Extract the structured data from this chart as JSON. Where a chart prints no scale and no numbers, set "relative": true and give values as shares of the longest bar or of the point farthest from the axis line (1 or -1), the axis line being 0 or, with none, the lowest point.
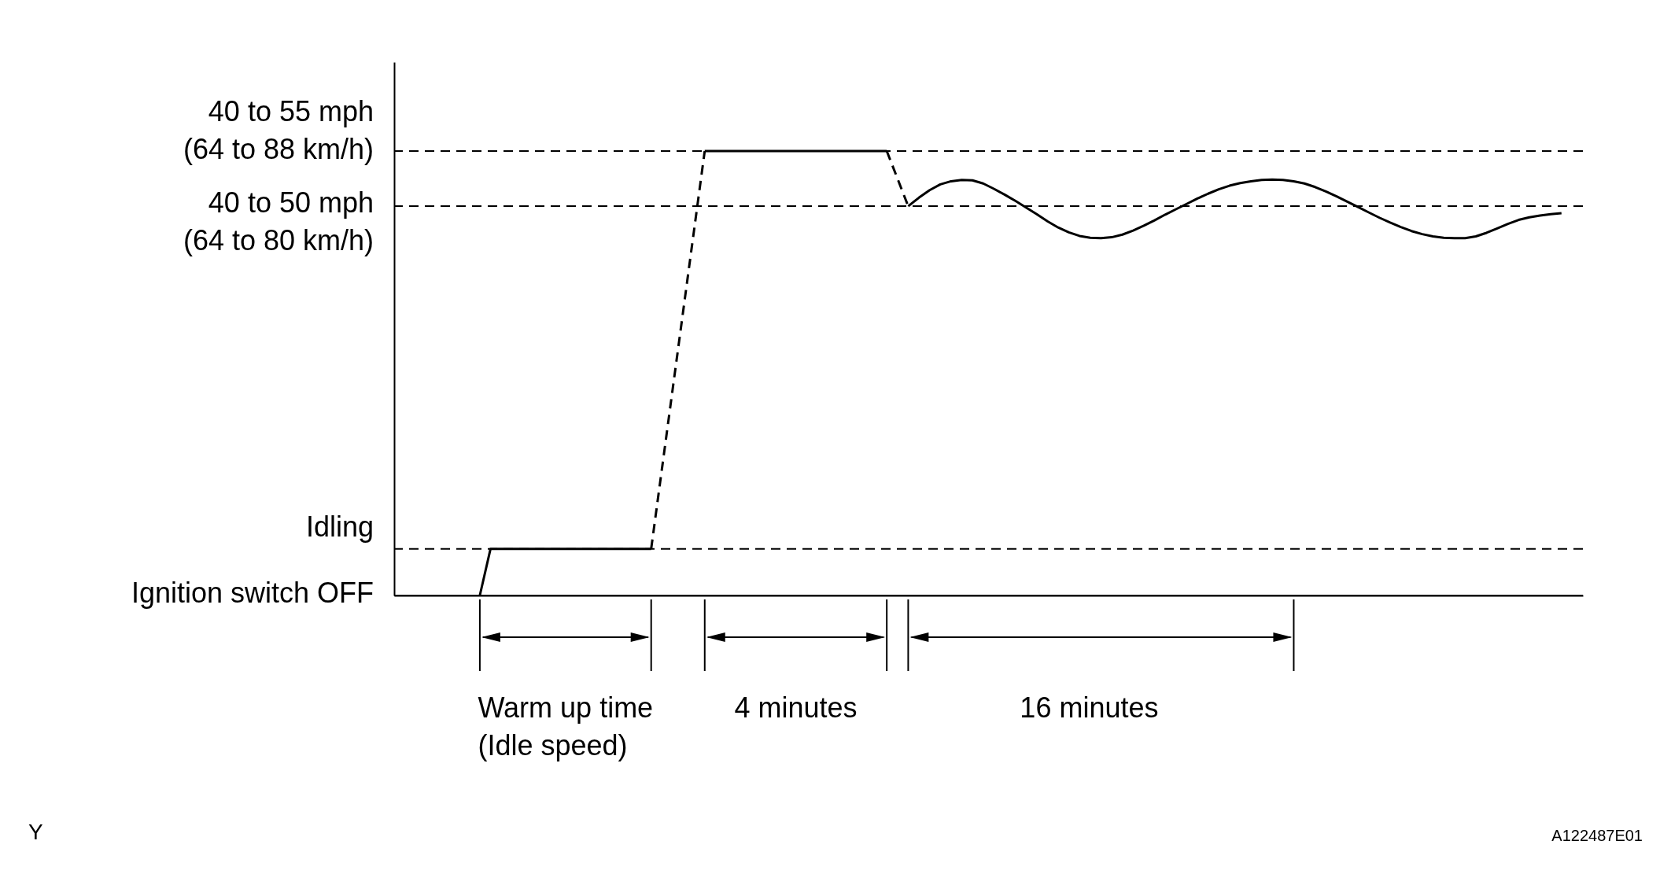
{
  "chart_data": {
    "type": "line",
    "relative": true,
    "grid": false,
    "legend": false,
    "marker": "none",
    "categories": [
      null,
      null,
      null,
      null,
      null,
      null,
      null,
      null,
      null,
      null,
      null,
      null,
      null,
      null,
      null,
      null,
      null,
      null,
      null,
      null,
      null,
      null,
      null,
      null,
      null,
      null,
      null,
      null,
      null,
      null,
      null,
      null,
      null,
      null,
      null,
      null,
      null,
      null,
      null,
      null,
      null,
      null,
      null,
      null,
      null,
      null,
      null,
      null,
      null,
      null,
      null,
      null,
      null,
      null,
      null,
      null,
      null,
      null,
      null,
      null,
      null,
      null,
      null,
      null,
      null,
      null,
      null,
      null,
      null,
      null,
      null,
      null,
      null,
      null,
      null,
      null,
      null,
      null,
      null,
      null,
      null,
      null,
      null,
      null,
      null,
      null,
      null,
      null,
      null,
      null,
      null,
      null,
      null,
      null,
      null,
      null,
      null,
      null,
      null,
      null,
      null,
      null,
      null,
      null,
      null,
      null,
      null,
      null,
      null,
      null,
      null,
      null
    ],
    "series": [
      {
        "color": "#000000",
        "line_style": "solid",
        "values": [
          null,
          null,
          null,
          null,
          null,
          null,
          null,
          null,
          0,
          0.105,
          0.105,
          0.105,
          0.105,
          0.105,
          0.105,
          0.105,
          0.105,
          0.105,
          0.105,
          0.105,
          0.105,
          0.105,
          0.105,
          0.105,
          0.105,
          null,
          null,
          null,
          null,
          null,
          null,
          null,
          null,
          null,
          null,
          null,
          null,
          null,
          null,
          null,
          null,
          null,
          null,
          null,
          null,
          null,
          null,
          null,
          null,
          null,
          null,
          null,
          null,
          null,
          null,
          null,
          null,
          null,
          null,
          null,
          null,
          null,
          null,
          null,
          null,
          null,
          null,
          null,
          null,
          null,
          null,
          null,
          null,
          null,
          null,
          null,
          null,
          null,
          null,
          null,
          null,
          null,
          null,
          null,
          null,
          null,
          null,
          null,
          null,
          null,
          null,
          null,
          null,
          null,
          null,
          null,
          null,
          null,
          null,
          null,
          null,
          null,
          null,
          null,
          null,
          null,
          null,
          null,
          null,
          null,
          null,
          null
        ]
      },
      {
        "color": "#000000",
        "line_style": "dashed",
        "values": [
          null,
          null,
          null,
          null,
          null,
          null,
          null,
          null,
          null,
          null,
          null,
          null,
          null,
          null,
          null,
          null,
          null,
          null,
          null,
          null,
          null,
          null,
          null,
          null,
          0.105,
          0.284,
          0.463,
          0.642,
          0.821,
          1.0,
          null,
          null,
          null,
          null,
          null,
          null,
          null,
          null,
          null,
          null,
          null,
          null,
          null,
          null,
          null,
          null,
          null,
          null,
          null,
          null,
          null,
          null,
          null,
          null,
          null,
          null,
          null,
          null,
          null,
          null,
          null,
          null,
          null,
          null,
          null,
          null,
          null,
          null,
          null,
          null,
          null,
          null,
          null,
          null,
          null,
          null,
          null,
          null,
          null,
          null,
          null,
          null,
          null,
          null,
          null,
          null,
          null,
          null,
          null,
          null,
          null,
          null,
          null,
          null,
          null,
          null,
          null,
          null,
          null,
          null,
          null,
          null,
          null,
          null,
          null,
          null,
          null,
          null,
          null,
          null,
          null,
          null
        ]
      },
      {
        "color": "#000000",
        "line_style": "solid",
        "values": [
          null,
          null,
          null,
          null,
          null,
          null,
          null,
          null,
          null,
          null,
          null,
          null,
          null,
          null,
          null,
          null,
          null,
          null,
          null,
          null,
          null,
          null,
          null,
          null,
          null,
          null,
          null,
          null,
          null,
          1.0,
          1.0,
          1.0,
          1.0,
          1.0,
          1.0,
          1.0,
          1.0,
          1.0,
          1.0,
          1.0,
          1.0,
          1.0,
          1.0,
          1.0,
          1.0,
          1.0,
          1.0,
          null,
          null,
          null,
          null,
          null,
          null,
          null,
          null,
          null,
          null,
          null,
          null,
          null,
          null,
          null,
          null,
          null,
          null,
          null,
          null,
          null,
          null,
          null,
          null,
          null,
          null,
          null,
          null,
          null,
          null,
          null,
          null,
          null,
          null,
          null,
          null,
          null,
          null,
          null,
          null,
          null,
          null,
          null,
          null,
          null,
          null,
          null,
          null,
          null,
          null,
          null,
          null,
          null,
          null,
          null,
          null,
          null,
          null,
          null,
          null,
          null,
          null,
          null,
          null,
          null
        ]
      },
      {
        "color": "#000000",
        "line_style": "dashed",
        "values": [
          null,
          null,
          null,
          null,
          null,
          null,
          null,
          null,
          null,
          null,
          null,
          null,
          null,
          null,
          null,
          null,
          null,
          null,
          null,
          null,
          null,
          null,
          null,
          null,
          null,
          null,
          null,
          null,
          null,
          null,
          null,
          null,
          null,
          null,
          null,
          null,
          null,
          null,
          null,
          null,
          null,
          null,
          null,
          null,
          null,
          null,
          1.0,
          0.938,
          0.876,
          null,
          null,
          null,
          null,
          null,
          null,
          null,
          null,
          null,
          null,
          null,
          null,
          null,
          null,
          null,
          null,
          null,
          null,
          null,
          null,
          null,
          null,
          null,
          null,
          null,
          null,
          null,
          null,
          null,
          null,
          null,
          null,
          null,
          null,
          null,
          null,
          null,
          null,
          null,
          null,
          null,
          null,
          null,
          null,
          null,
          null,
          null,
          null,
          null,
          null,
          null,
          null,
          null,
          null,
          null,
          null,
          null,
          null,
          null,
          null,
          null,
          null,
          null
        ]
      },
      {
        "color": "#000000",
        "line_style": "solid",
        "values": [
          null,
          null,
          null,
          null,
          null,
          null,
          null,
          null,
          null,
          null,
          null,
          null,
          null,
          null,
          null,
          null,
          null,
          null,
          null,
          null,
          null,
          null,
          null,
          null,
          null,
          null,
          null,
          null,
          null,
          null,
          null,
          null,
          null,
          null,
          null,
          null,
          null,
          null,
          null,
          null,
          null,
          null,
          null,
          null,
          null,
          null,
          null,
          null,
          0.876,
          0.895,
          0.912,
          0.925,
          0.932,
          0.935,
          0.934,
          0.927,
          0.915,
          0.902,
          0.888,
          0.873,
          0.858,
          0.842,
          0.828,
          0.817,
          0.809,
          0.805,
          0.804,
          0.806,
          0.812,
          0.821,
          0.832,
          0.844,
          0.857,
          0.869,
          0.881,
          0.893,
          0.904,
          0.914,
          0.922,
          0.928,
          0.932,
          0.935,
          0.936,
          0.935,
          0.932,
          0.927,
          0.919,
          0.909,
          0.898,
          0.886,
          0.874,
          0.862,
          0.85,
          0.839,
          0.829,
          0.82,
          0.813,
          0.808,
          0.805,
          0.804,
          0.804,
          0.808,
          0.816,
          0.826,
          0.836,
          0.845,
          0.851,
          0.855,
          0.858,
          0.86,
          null,
          null
        ]
      }
    ],
    "ref_lines": [
      {
        "axis": "y",
        "value": 1.0,
        "label": "40 to 55 mph\n(64 to 88 km/h)",
        "line_style": "dashed"
      },
      {
        "axis": "y",
        "value": 0.876,
        "label": "40 to 50 mph\n(64 to 80 km/h)",
        "line_style": "dashed"
      },
      {
        "axis": "y",
        "value": 0.105,
        "label": "Idling",
        "line_style": "dashed"
      },
      {
        "axis": "y",
        "value": 0,
        "label": "Ignition switch OFF",
        "line_style": "solid"
      }
    ],
    "annotations": [
      "Warm up time\n(Idle speed)",
      "4 minutes",
      "16 minutes",
      "Y",
      "A122487E01"
    ]
  }
}
